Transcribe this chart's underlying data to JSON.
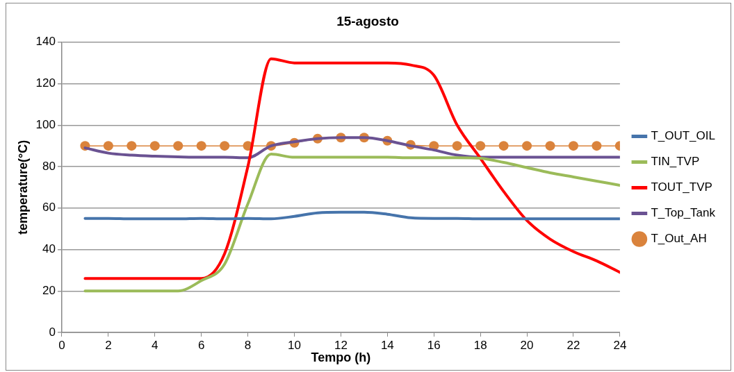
{
  "chart_data": {
    "type": "line",
    "title": "15-agosto",
    "xlabel": "Tempo (h)",
    "ylabel": "temperature(°C)",
    "x": [
      1,
      2,
      3,
      4,
      5,
      6,
      7,
      8,
      9,
      10,
      11,
      12,
      13,
      14,
      15,
      16,
      17,
      18,
      19,
      20,
      21,
      22,
      23,
      24
    ],
    "xlim": [
      0,
      24
    ],
    "xticks": [
      0,
      2,
      4,
      6,
      8,
      10,
      12,
      14,
      16,
      18,
      20,
      22,
      24
    ],
    "ylim": [
      0,
      140
    ],
    "yticks": [
      0,
      20,
      40,
      60,
      80,
      100,
      120,
      140
    ],
    "grid": "y",
    "legend": "right",
    "marker": "none",
    "line_style": "solid",
    "series": [
      {
        "name": "T_OUT_OIL",
        "color": "#4674ab",
        "values": [
          55,
          55,
          54.8,
          54.8,
          54.8,
          55,
          54.8,
          55,
          54.8,
          56,
          57.7,
          58,
          58,
          57,
          55.3,
          55,
          55,
          54.8,
          54.8,
          54.8,
          54.8,
          54.8,
          54.8,
          54.8
        ]
      },
      {
        "name": "TIN_TVP",
        "color": "#9bbb59",
        "values": [
          20,
          20,
          20,
          20,
          20,
          25,
          33,
          62,
          86,
          84.5,
          84.5,
          84.5,
          84.5,
          84.5,
          84.3,
          84.3,
          84.3,
          84,
          82,
          79.5,
          77,
          75,
          73,
          71
        ]
      },
      {
        "name": "TOUT_TVP",
        "color": "#ff0000",
        "values": [
          26,
          26,
          26,
          26,
          26,
          26,
          38,
          80,
          132,
          130,
          130,
          130,
          130,
          130,
          129,
          124,
          100,
          84,
          68,
          54,
          45,
          39,
          34.5,
          29
        ]
      },
      {
        "name": "T_Top_Tank",
        "color": "#6a5292",
        "values": [
          89,
          86.5,
          85.5,
          85,
          84.7,
          84.5,
          84.5,
          84.3,
          90,
          92,
          93.5,
          94,
          94,
          92.5,
          90,
          88,
          85.5,
          84.5,
          84.5,
          84.5,
          84.5,
          84.5,
          84.5,
          84.5
        ]
      },
      {
        "name": "T_Out_AH",
        "color": "#da833c",
        "marker": "circle",
        "values": [
          90,
          90,
          90,
          90,
          90,
          90,
          90,
          90,
          90,
          91.5,
          93.5,
          94,
          94,
          92.5,
          90.5,
          90,
          90,
          90,
          90,
          90,
          90,
          90,
          90,
          90
        ]
      }
    ]
  }
}
